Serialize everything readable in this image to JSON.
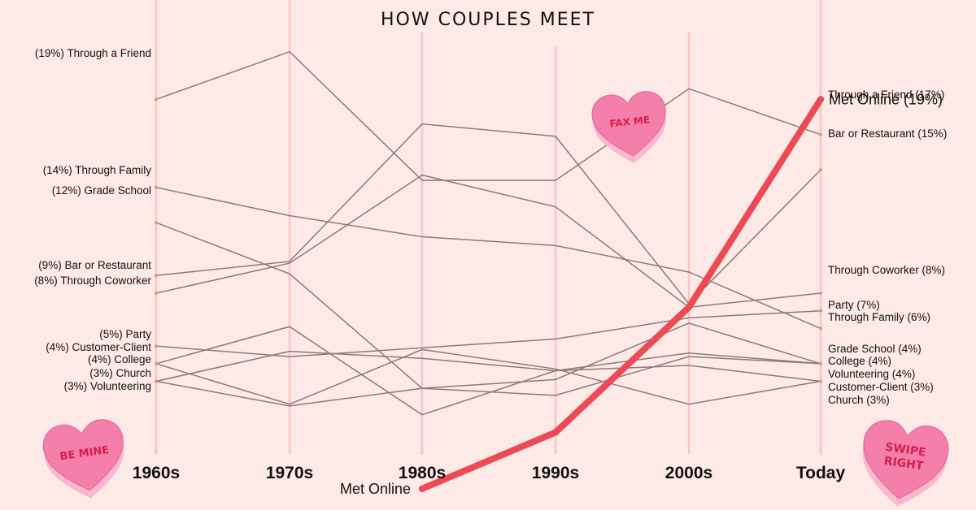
{
  "title": "HOW COUPLES MEET",
  "colors": {
    "background": "#fde9e6",
    "gridline": "#f5c9bd",
    "line": "#8c7a76",
    "highlight": "#ec4a55",
    "heart": "#f47fab",
    "heart_side": "#f9b8cd",
    "heart_text": "#d41f4a"
  },
  "hearts": [
    "BE MINE",
    "FAX ME",
    "SWIPE RIGHT"
  ],
  "chart_data": {
    "type": "line",
    "title": "HOW COUPLES MEET",
    "x": [
      "1960s",
      "1970s",
      "1980s",
      "1990s",
      "2000s",
      "Today"
    ],
    "ylabel": "",
    "ylim": [
      0,
      20
    ],
    "grid": "vertical",
    "series": [
      {
        "name": "Through a Friend",
        "values": [
          19,
          21.7,
          14.4,
          14.4,
          19.6,
          17
        ],
        "start_label": "(19%) Through a Friend",
        "end_label": "Through a Friend (17%)"
      },
      {
        "name": "Through Family",
        "values": [
          14,
          12.4,
          11.2,
          10.7,
          9.2,
          6
        ],
        "start_label": "(14%) Through Family",
        "end_label": "Through Family (6%)"
      },
      {
        "name": "Grade School",
        "values": [
          12,
          9.1,
          2.6,
          2.2,
          4.4,
          4
        ],
        "start_label": "(12%) Grade School",
        "end_label": "Grade School (4%)"
      },
      {
        "name": "Bar or Restaurant",
        "values": [
          9,
          9.8,
          17.6,
          16.9,
          7.4,
          15
        ],
        "start_label": "(9%) Bar or Restaurant",
        "end_label": "Bar or Restaurant (15%)"
      },
      {
        "name": "Through Coworker",
        "values": [
          8,
          9.7,
          14.7,
          12.9,
          7.2,
          8
        ],
        "start_label": "(8%) Through Coworker",
        "end_label": "Through Coworker (8%)"
      },
      {
        "name": "Party",
        "values": [
          5,
          4.4,
          4.9,
          5.4,
          6.6,
          7
        ],
        "start_label": "(5%) Party",
        "end_label": "Party (7%)"
      },
      {
        "name": "Customer-Client",
        "values": [
          4,
          1.7,
          4.8,
          3.7,
          1.7,
          3
        ],
        "start_label": "(4%) Customer-Client",
        "end_label": "Customer-Client (3%)"
      },
      {
        "name": "College",
        "values": [
          4,
          6.1,
          1.1,
          3.6,
          4.6,
          4
        ],
        "start_label": "(4%) College",
        "end_label": "College (4%)"
      },
      {
        "name": "Church",
        "values": [
          3,
          4.7,
          4.3,
          3.6,
          3.9,
          3
        ],
        "start_label": "(3%) Church",
        "end_label": "Church (3%)"
      },
      {
        "name": "Volunteering",
        "values": [
          3,
          1.6,
          2.6,
          3.1,
          6.3,
          4
        ],
        "start_label": "(3%) Volunteering",
        "end_label": "Volunteering (4%)"
      },
      {
        "name": "Met Online",
        "values": [
          null,
          null,
          -3.1,
          0.1,
          7.2,
          19
        ],
        "start_label": "Met Online",
        "end_label": "Met Online (19%)",
        "highlight": true
      }
    ]
  }
}
